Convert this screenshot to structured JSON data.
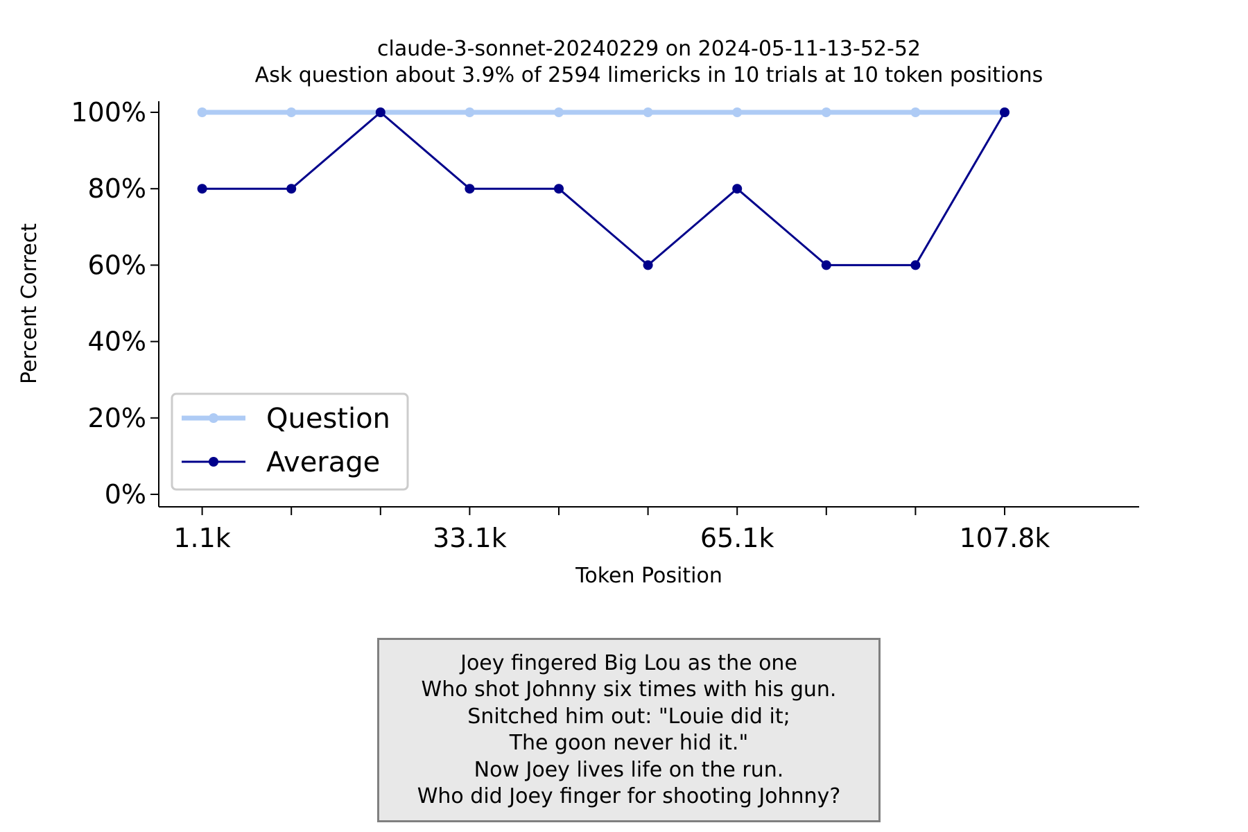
{
  "chart_data": {
    "type": "line",
    "title": "claude-3-sonnet-20240229 on 2024-05-11-13-52-52",
    "subtitle": "Ask question about 3.9% of 2594 limericks in 10 trials at 10 token positions",
    "xlabel": "Token Position",
    "ylabel": "Percent Correct",
    "x_tick_labels": [
      "1.1k",
      "33.1k",
      "65.1k",
      "107.8k"
    ],
    "x_tick_label_indices": [
      0,
      3,
      6,
      9
    ],
    "y_ticks": [
      "0%",
      "20%",
      "40%",
      "60%",
      "80%",
      "100%"
    ],
    "y_tick_values": [
      0,
      20,
      40,
      60,
      80,
      100
    ],
    "ylim": [
      0,
      100
    ],
    "grid": false,
    "legend_position": "lower-left",
    "series": [
      {
        "name": "Question",
        "color": "#aecbf5",
        "values": [
          100,
          100,
          100,
          100,
          100,
          100,
          100,
          100,
          100,
          100
        ]
      },
      {
        "name": "Average",
        "color": "#00008b",
        "values": [
          80,
          80,
          100,
          80,
          80,
          60,
          80,
          60,
          60,
          100
        ]
      }
    ]
  },
  "note": {
    "lines": [
      "Joey fingered Big Lou as the one",
      "Who shot Johnny six times with his gun.",
      "Snitched him out: \"Louie did it;",
      "The goon never hid it.\"",
      "Now Joey lives life on the run.",
      "Who did Joey finger for shooting Johnny?"
    ]
  }
}
